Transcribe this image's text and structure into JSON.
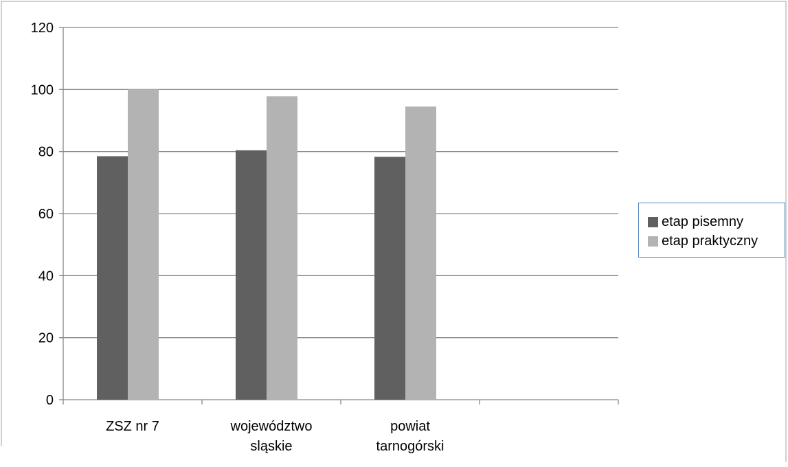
{
  "chart_data": {
    "type": "bar",
    "categories": [
      [
        "ZSZ nr 7"
      ],
      [
        "województwo",
        "sląskie"
      ],
      [
        "powiat",
        "tarnogórski"
      ],
      [
        ""
      ]
    ],
    "series": [
      {
        "name": "etap pisemny",
        "values": [
          78.5,
          80.4,
          78.3,
          null
        ],
        "color": "#606060"
      },
      {
        "name": "etap praktyczny",
        "values": [
          100,
          97.8,
          94.5,
          null
        ],
        "color": "#b3b3b3"
      }
    ],
    "ylim": [
      0,
      120
    ],
    "yticks": [
      0,
      20,
      40,
      60,
      80,
      100,
      120
    ],
    "grid": true,
    "legend_position": "right",
    "title": "",
    "xlabel": "",
    "ylabel": ""
  }
}
